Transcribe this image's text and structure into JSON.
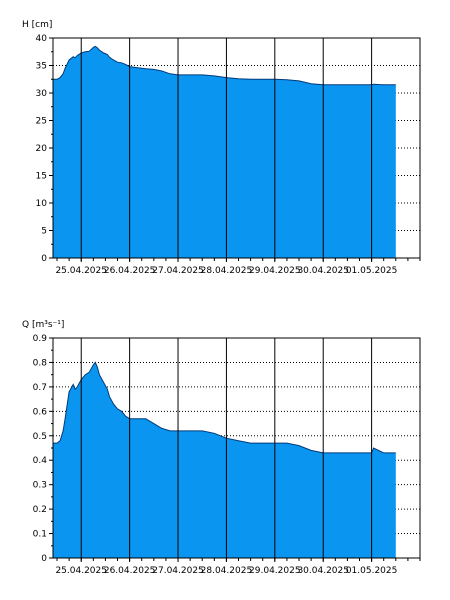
{
  "chart_data": [
    {
      "type": "area",
      "ylabel": "H [cm]",
      "ylim": [
        0,
        40
      ],
      "yticks": [
        0,
        5,
        10,
        15,
        20,
        25,
        30,
        35,
        40
      ],
      "xlim": [
        "2025-04-24T10:00",
        "2025-05-02T00:00"
      ],
      "x_tick_labels": [
        "25.04.2025",
        "26.04.2025",
        "27.04.2025",
        "28.04.2025",
        "29.04.2025",
        "30.04.2025",
        "01.05.2025"
      ],
      "grid": true,
      "fill_color": "#0a96f0",
      "x": [
        "2025-04-24T10:00",
        "2025-04-24T12:00",
        "2025-04-24T13:30",
        "2025-04-24T15:00",
        "2025-04-24T16:00",
        "2025-04-24T18:00",
        "2025-04-24T20:00",
        "2025-04-24T21:00",
        "2025-04-24T22:00",
        "2025-04-25T00:00",
        "2025-04-25T02:00",
        "2025-04-25T04:00",
        "2025-04-25T06:00",
        "2025-04-25T07:00",
        "2025-04-25T08:00",
        "2025-04-25T09:00",
        "2025-04-25T11:00",
        "2025-04-25T13:00",
        "2025-04-25T14:00",
        "2025-04-25T16:00",
        "2025-04-25T18:00",
        "2025-04-25T20:00",
        "2025-04-25T22:00",
        "2025-04-26T00:00",
        "2025-04-26T04:00",
        "2025-04-26T08:00",
        "2025-04-26T12:00",
        "2025-04-26T16:00",
        "2025-04-26T20:00",
        "2025-04-27T00:00",
        "2025-04-27T06:00",
        "2025-04-27T12:00",
        "2025-04-27T18:00",
        "2025-04-28T00:00",
        "2025-04-28T06:00",
        "2025-04-28T12:00",
        "2025-04-28T18:00",
        "2025-04-29T00:00",
        "2025-04-29T06:00",
        "2025-04-29T12:00",
        "2025-04-29T18:00",
        "2025-04-30T00:00",
        "2025-04-30T12:00",
        "2025-04-30T22:00",
        "2025-05-01T00:00",
        "2025-05-01T01:00",
        "2025-05-01T06:00",
        "2025-05-01T12:00"
      ],
      "y": [
        32.5,
        32.5,
        32.8,
        33.5,
        34.5,
        36,
        36.6,
        36.4,
        36.8,
        37.3,
        37.5,
        37.6,
        38.3,
        38.5,
        38.2,
        37.8,
        37.3,
        37,
        36.5,
        36,
        35.6,
        35.5,
        35.2,
        34.8,
        34.6,
        34.4,
        34.3,
        34.0,
        33.5,
        33.3,
        33.3,
        33.3,
        33.1,
        32.8,
        32.6,
        32.5,
        32.5,
        32.5,
        32.4,
        32.2,
        31.7,
        31.5,
        31.5,
        31.5,
        31.5,
        31.6,
        31.5,
        31.5
      ]
    },
    {
      "type": "area",
      "ylabel": "Q [m³s⁻¹]",
      "ylim": [
        0,
        0.9
      ],
      "yticks": [
        0,
        0.1,
        0.2,
        0.3,
        0.4,
        0.5,
        0.6,
        0.7,
        0.8,
        0.9
      ],
      "xlim": [
        "2025-04-24T10:00",
        "2025-05-02T00:00"
      ],
      "x_tick_labels": [
        "25.04.2025",
        "26.04.2025",
        "27.04.2025",
        "28.04.2025",
        "29.04.2025",
        "30.04.2025",
        "01.05.2025"
      ],
      "grid": true,
      "fill_color": "#0a96f0",
      "x": [
        "2025-04-24T10:00",
        "2025-04-24T12:00",
        "2025-04-24T13:30",
        "2025-04-24T15:00",
        "2025-04-24T16:00",
        "2025-04-24T18:00",
        "2025-04-24T20:00",
        "2025-04-24T21:00",
        "2025-04-24T22:00",
        "2025-04-25T00:00",
        "2025-04-25T02:00",
        "2025-04-25T04:00",
        "2025-04-25T06:00",
        "2025-04-25T07:00",
        "2025-04-25T08:00",
        "2025-04-25T09:00",
        "2025-04-25T11:00",
        "2025-04-25T13:00",
        "2025-04-25T14:00",
        "2025-04-25T16:00",
        "2025-04-25T18:00",
        "2025-04-25T20:00",
        "2025-04-25T22:00",
        "2025-04-26T00:00",
        "2025-04-26T04:00",
        "2025-04-26T08:00",
        "2025-04-26T12:00",
        "2025-04-26T16:00",
        "2025-04-26T20:00",
        "2025-04-27T00:00",
        "2025-04-27T06:00",
        "2025-04-27T12:00",
        "2025-04-27T18:00",
        "2025-04-28T00:00",
        "2025-04-28T06:00",
        "2025-04-28T12:00",
        "2025-04-28T18:00",
        "2025-04-29T00:00",
        "2025-04-29T06:00",
        "2025-04-29T12:00",
        "2025-04-29T18:00",
        "2025-04-30T00:00",
        "2025-04-30T12:00",
        "2025-04-30T22:00",
        "2025-05-01T00:00",
        "2025-05-01T01:00",
        "2025-05-01T06:00",
        "2025-05-01T12:00"
      ],
      "y": [
        0.47,
        0.47,
        0.48,
        0.52,
        0.57,
        0.68,
        0.71,
        0.69,
        0.7,
        0.73,
        0.75,
        0.76,
        0.79,
        0.8,
        0.78,
        0.75,
        0.72,
        0.69,
        0.66,
        0.63,
        0.61,
        0.6,
        0.58,
        0.57,
        0.57,
        0.57,
        0.55,
        0.53,
        0.52,
        0.52,
        0.52,
        0.52,
        0.51,
        0.49,
        0.48,
        0.47,
        0.47,
        0.47,
        0.47,
        0.46,
        0.44,
        0.43,
        0.43,
        0.43,
        0.43,
        0.45,
        0.43,
        0.43
      ]
    }
  ]
}
